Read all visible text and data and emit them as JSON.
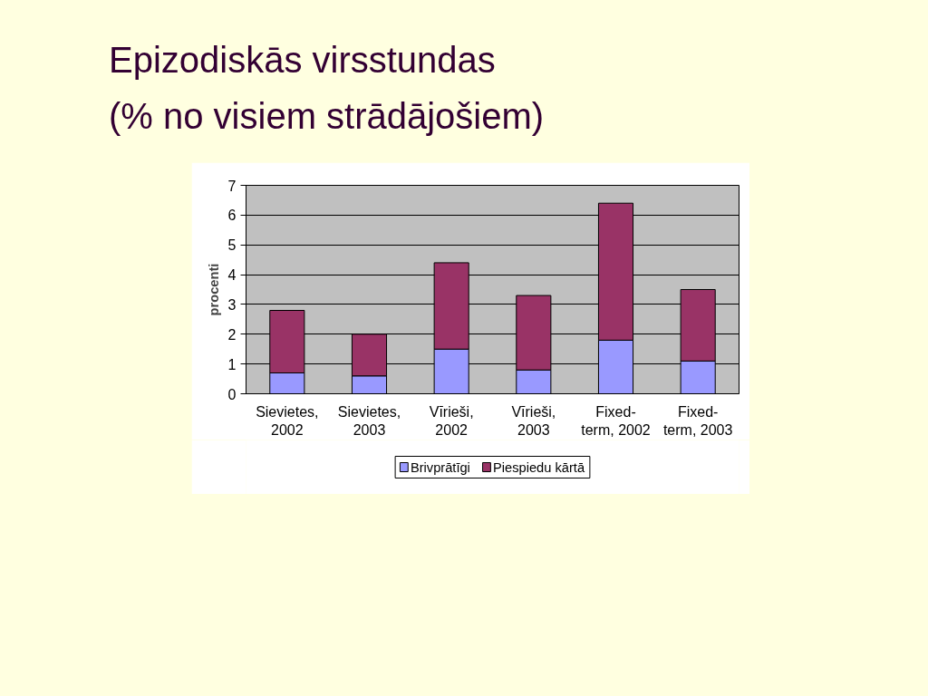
{
  "chart_data": {
    "type": "bar",
    "title": "Epizodiskās virsstundas",
    "subtitle": "(% no visiem strādājošiem)",
    "ylabel": "procenti",
    "categories": [
      "Sievietes,\n2002",
      "Sievietes,\n2003",
      "Vīrieši,\n2002",
      "Vīrieši,\n2003",
      "Fixed-\nterm, 2002",
      "Fixed-\nterm, 2003"
    ],
    "stacked": true,
    "series": [
      {
        "name": "Brivprātīgi",
        "color": "#9999ff",
        "values": [
          0.7,
          0.6,
          1.5,
          0.8,
          1.8,
          1.1
        ]
      },
      {
        "name": "Piespiedu kārtā",
        "color": "#993366",
        "values": [
          2.1,
          1.4,
          2.9,
          2.5,
          4.6,
          2.4
        ]
      }
    ],
    "ylim": [
      0,
      7
    ],
    "yticks": [
      0,
      1,
      2,
      3,
      4,
      5,
      6,
      7
    ],
    "grid": "y",
    "legend": "bottom"
  }
}
